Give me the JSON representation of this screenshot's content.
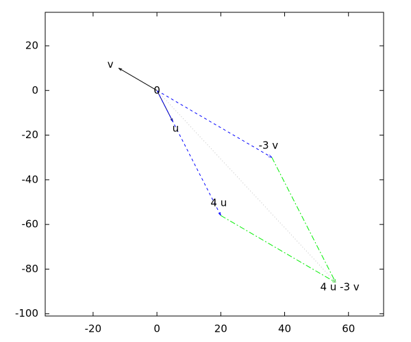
{
  "chart_data": {
    "type": "vector",
    "xlim": [
      -35,
      71
    ],
    "ylim": [
      -101,
      35
    ],
    "xticks": [
      -20,
      0,
      20,
      40,
      60
    ],
    "yticks": [
      20,
      0,
      -20,
      -40,
      -60,
      -80,
      -100
    ],
    "points": [
      {
        "label": "v",
        "x": -12,
        "y": 10
      },
      {
        "label": "0",
        "x": 0,
        "y": 0
      },
      {
        "label": "u",
        "x": 5,
        "y": -14
      },
      {
        "label": "-3 v",
        "x": 36,
        "y": -30
      },
      {
        "label": "4 u",
        "x": 20,
        "y": -56
      },
      {
        "label": "4 u -3 v",
        "x": 56,
        "y": -86
      }
    ],
    "segments": [
      {
        "from": [
          0,
          0
        ],
        "to": [
          5,
          -14
        ],
        "color": "#000080",
        "style": "solid"
      },
      {
        "from": [
          0,
          0
        ],
        "to": [
          -12,
          10
        ],
        "color": "#000000",
        "style": "solid"
      },
      {
        "from": [
          0,
          0
        ],
        "to": [
          36,
          -30
        ],
        "color": "#0000ff",
        "style": "dashed"
      },
      {
        "from": [
          0,
          0
        ],
        "to": [
          20,
          -56
        ],
        "color": "#0000ff",
        "style": "dashed"
      },
      {
        "from": [
          36,
          -30
        ],
        "to": [
          56,
          -86
        ],
        "color": "#00ee00",
        "style": "dashdot"
      },
      {
        "from": [
          20,
          -56
        ],
        "to": [
          56,
          -86
        ],
        "color": "#00ee00",
        "style": "dashdot"
      },
      {
        "from": [
          0,
          0
        ],
        "to": [
          56,
          -86
        ],
        "color": "#c0c0c0",
        "style": "dotted"
      }
    ]
  }
}
